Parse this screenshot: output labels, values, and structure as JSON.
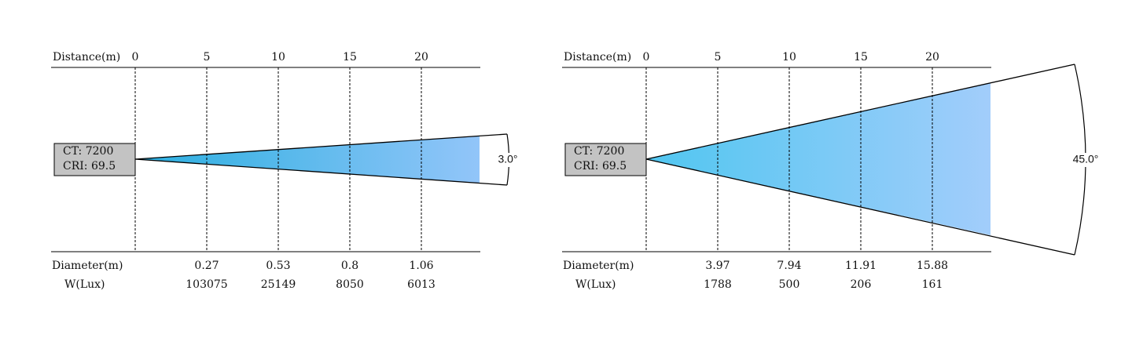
{
  "panels": [
    {
      "distance_label": "Distance(m)",
      "distances": [
        0,
        5,
        10,
        15,
        20
      ],
      "info": [
        "CT: 7200",
        "CRI: 69.5"
      ],
      "angle": "3.0°",
      "diameter_label": "Diameter(m)",
      "diameters": [
        0.27,
        0.53,
        0.8,
        1.06
      ],
      "lux_label": "W(Lux)",
      "lux": [
        103075,
        25149,
        8050,
        6013
      ]
    },
    {
      "distance_label": "Distance(m)",
      "distances": [
        0,
        5,
        10,
        15,
        20
      ],
      "info": [
        "CT: 7200",
        "CRI: 69.5"
      ],
      "angle": "45.0°",
      "diameter_label": "Diameter(m)",
      "diameters": [
        3.97,
        7.94,
        11.91,
        15.88
      ],
      "lux_label": "W(Lux)",
      "lux": [
        1788,
        500,
        206,
        161
      ]
    }
  ]
}
